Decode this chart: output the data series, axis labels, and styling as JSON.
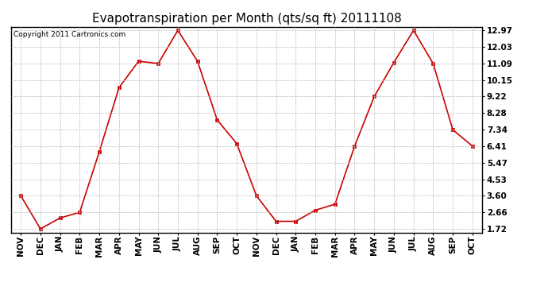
{
  "title": "Evapotranspiration per Month (qts/sq ft) 20111108",
  "copyright": "Copyright 2011 Cartronics.com",
  "months": [
    "NOV",
    "DEC",
    "JAN",
    "FEB",
    "MAR",
    "APR",
    "MAY",
    "JUN",
    "JUL",
    "AUG",
    "SEP",
    "OCT",
    "NOV",
    "DEC",
    "JAN",
    "FEB",
    "MAR",
    "APR",
    "MAY",
    "JUN",
    "JUL",
    "AUG",
    "SEP",
    "OCT"
  ],
  "values": [
    3.6,
    1.72,
    2.34,
    2.66,
    6.1,
    9.72,
    11.22,
    11.09,
    12.97,
    11.22,
    7.9,
    6.55,
    3.6,
    2.15,
    2.15,
    2.78,
    3.12,
    6.41,
    9.22,
    11.15,
    12.97,
    11.09,
    7.34,
    6.41
  ],
  "yticks": [
    1.72,
    2.66,
    3.6,
    4.53,
    5.47,
    6.41,
    7.34,
    8.28,
    9.22,
    10.15,
    11.09,
    12.03,
    12.97
  ],
  "line_color": "#cc0000",
  "marker": "s",
  "marker_size": 3,
  "bg_color": "#ffffff",
  "grid_color": "#bbbbbb",
  "title_fontsize": 11,
  "tick_fontsize": 7.5,
  "copyright_fontsize": 6.5,
  "ylim_min": 1.72,
  "ylim_max": 12.97
}
